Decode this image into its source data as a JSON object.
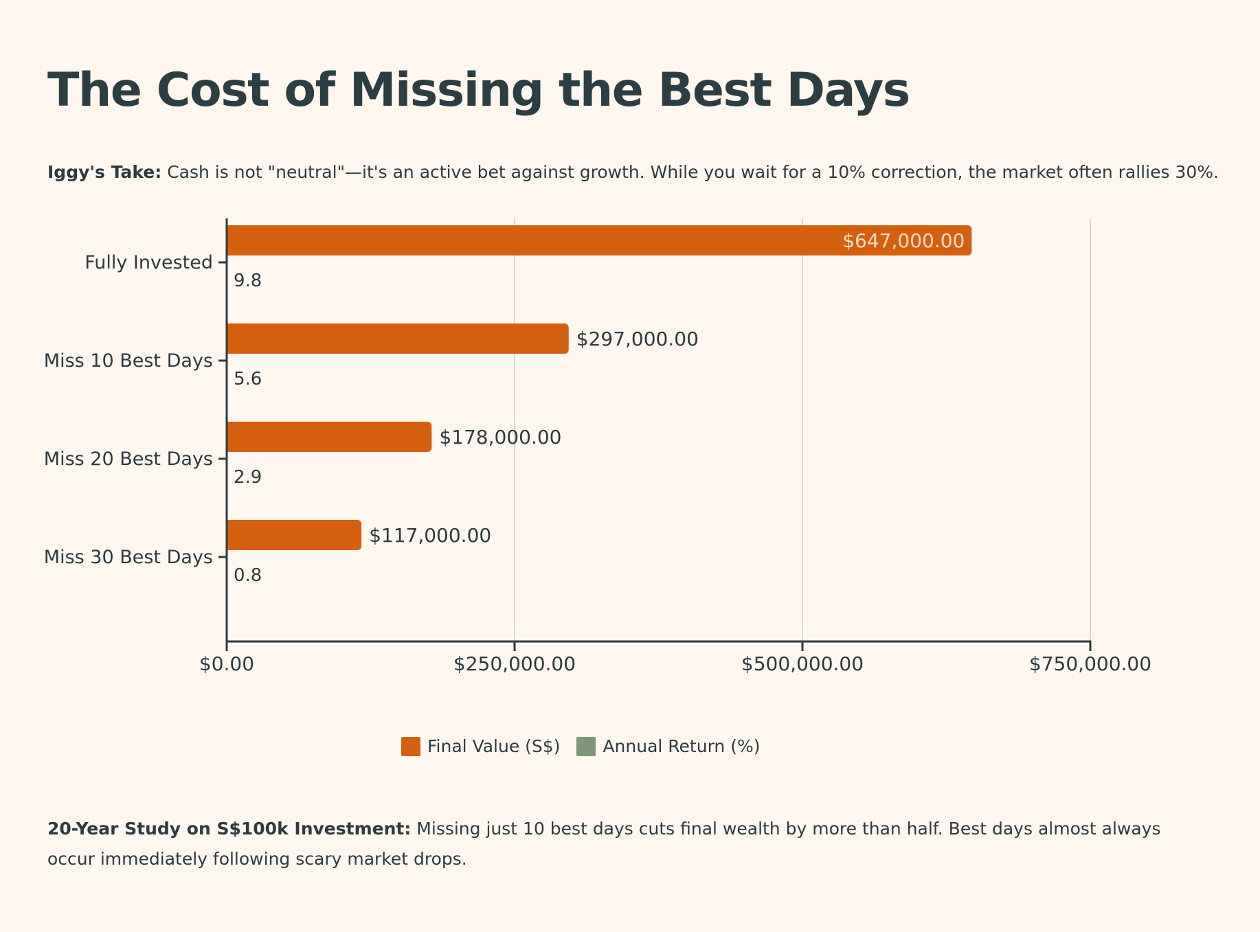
{
  "title": "The Cost of Missing the Best Days",
  "take": {
    "label": "Iggy's Take:",
    "text": "Cash is not \"neutral\"—it's an active bet against growth. While you wait for a 10% correction, the market often rallies 30%."
  },
  "colors": {
    "final_value": "#d4600f",
    "annual_return": "#7f9678",
    "grid": "#cfcfcf",
    "axis": "#2d3a3f",
    "background": "#fdf7f0"
  },
  "chart_data": {
    "type": "bar",
    "orientation": "horizontal",
    "categories": [
      "Fully Invested",
      "Miss 10 Best Days",
      "Miss 20 Best Days",
      "Miss 30 Best Days"
    ],
    "series": [
      {
        "name": "Final Value (S$)",
        "values": [
          647000,
          297000,
          178000,
          117000
        ],
        "labels": [
          "$647,000.00",
          "$297,000.00",
          "$178,000.00",
          "$117,000.00"
        ]
      },
      {
        "name": "Annual Return (%)",
        "values": [
          9.8,
          5.6,
          2.9,
          0.8
        ],
        "labels": [
          "9.8",
          "5.6",
          "2.9",
          "0.8"
        ]
      }
    ],
    "xlim": [
      0,
      750000
    ],
    "xticks": [
      0,
      250000,
      500000,
      750000
    ],
    "xtick_labels": [
      "$0.00",
      "$250,000.00",
      "$500,000.00",
      "$750,000.00"
    ],
    "grid": true,
    "legend": "bottom-center"
  },
  "legend": {
    "items": [
      {
        "label": "Final Value (S$)"
      },
      {
        "label": "Annual Return (%)"
      }
    ]
  },
  "footnote": {
    "label": "20-Year Study on S$100k Investment:",
    "text": "Missing just 10 best days cuts final wealth by more than half. Best days almost always occur immediately following scary market drops."
  }
}
